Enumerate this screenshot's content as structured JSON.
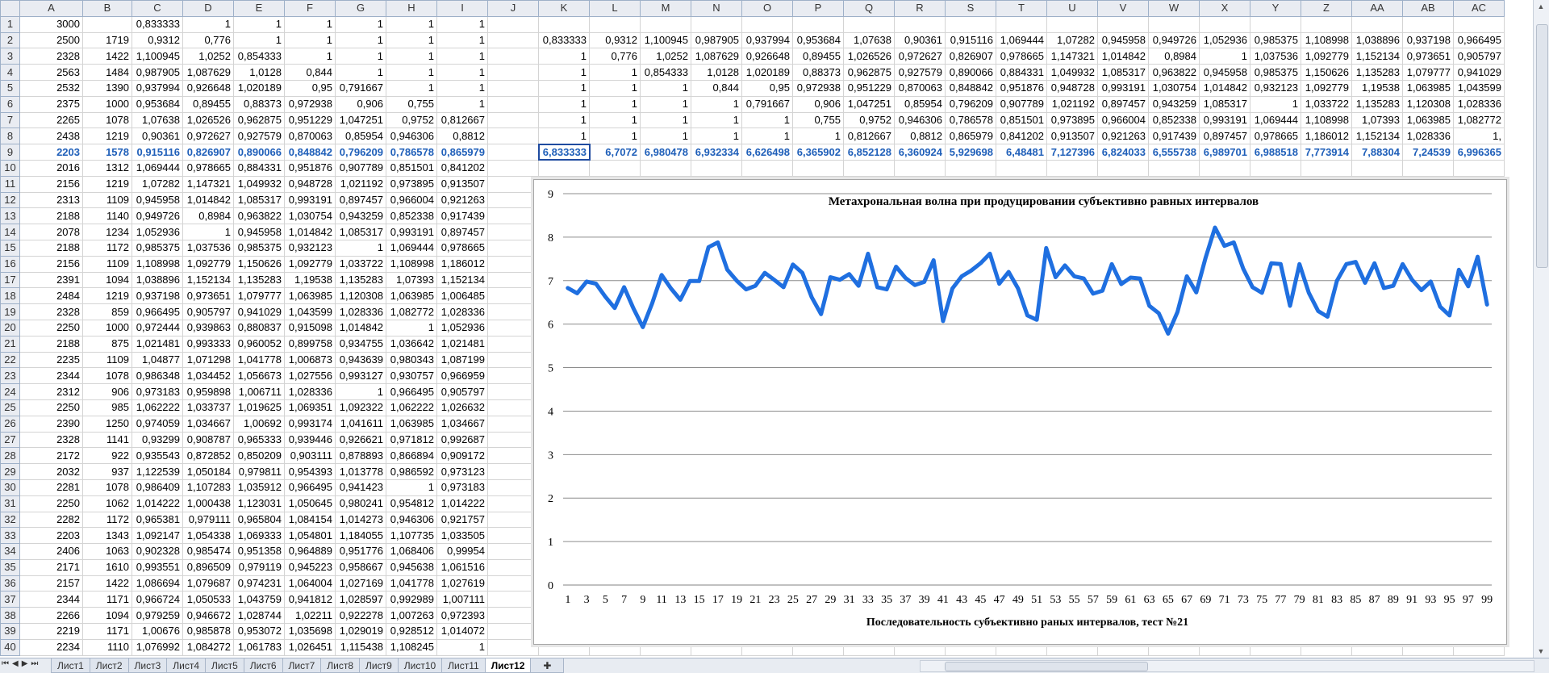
{
  "columns": [
    "A",
    "B",
    "C",
    "D",
    "E",
    "F",
    "G",
    "H",
    "I",
    "J",
    "K",
    "L",
    "M",
    "N",
    "O",
    "P",
    "Q",
    "R",
    "S",
    "T",
    "U",
    "V",
    "W",
    "X",
    "Y",
    "Z",
    "AA",
    "AB",
    "AC"
  ],
  "rows": [
    [
      "3000",
      "",
      "0,833333",
      "1",
      "1",
      "1",
      "1",
      "1",
      "1",
      "",
      "",
      "",
      "",
      "",
      "",
      "",
      "",
      "",
      "",
      "",
      "",
      "",
      "",
      "",
      "",
      "",
      "",
      "",
      ""
    ],
    [
      "2500",
      "1719",
      "0,9312",
      "0,776",
      "1",
      "1",
      "1",
      "1",
      "1",
      "",
      "0,833333",
      "0,9312",
      "1,100945",
      "0,987905",
      "0,937994",
      "0,953684",
      "1,07638",
      "0,90361",
      "0,915116",
      "1,069444",
      "1,07282",
      "0,945958",
      "0,949726",
      "1,052936",
      "0,985375",
      "1,108998",
      "1,038896",
      "0,937198",
      "0,966495"
    ],
    [
      "2328",
      "1422",
      "1,100945",
      "1,0252",
      "0,854333",
      "1",
      "1",
      "1",
      "1",
      "",
      "1",
      "0,776",
      "1,0252",
      "1,087629",
      "0,926648",
      "0,89455",
      "1,026526",
      "0,972627",
      "0,826907",
      "0,978665",
      "1,147321",
      "1,014842",
      "0,8984",
      "1",
      "1,037536",
      "1,092779",
      "1,152134",
      "0,973651",
      "0,905797"
    ],
    [
      "2563",
      "1484",
      "0,987905",
      "1,087629",
      "1,0128",
      "0,844",
      "1",
      "1",
      "1",
      "",
      "1",
      "1",
      "0,854333",
      "1,0128",
      "1,020189",
      "0,88373",
      "0,962875",
      "0,927579",
      "0,890066",
      "0,884331",
      "1,049932",
      "1,085317",
      "0,963822",
      "0,945958",
      "0,985375",
      "1,150626",
      "1,135283",
      "1,079777",
      "0,941029"
    ],
    [
      "2532",
      "1390",
      "0,937994",
      "0,926648",
      "1,020189",
      "0,95",
      "0,791667",
      "1",
      "1",
      "",
      "1",
      "1",
      "1",
      "0,844",
      "0,95",
      "0,972938",
      "0,951229",
      "0,870063",
      "0,848842",
      "0,951876",
      "0,948728",
      "0,993191",
      "1,030754",
      "1,014842",
      "0,932123",
      "1,092779",
      "1,19538",
      "1,063985",
      "1,043599"
    ],
    [
      "2375",
      "1000",
      "0,953684",
      "0,89455",
      "0,88373",
      "0,972938",
      "0,906",
      "0,755",
      "1",
      "",
      "1",
      "1",
      "1",
      "1",
      "0,791667",
      "0,906",
      "1,047251",
      "0,85954",
      "0,796209",
      "0,907789",
      "1,021192",
      "0,897457",
      "0,943259",
      "1,085317",
      "1",
      "1,033722",
      "1,135283",
      "1,120308",
      "1,028336"
    ],
    [
      "2265",
      "1078",
      "1,07638",
      "1,026526",
      "0,962875",
      "0,951229",
      "1,047251",
      "0,9752",
      "0,812667",
      "",
      "1",
      "1",
      "1",
      "1",
      "1",
      "0,755",
      "0,9752",
      "0,946306",
      "0,786578",
      "0,851501",
      "0,973895",
      "0,966004",
      "0,852338",
      "0,993191",
      "1,069444",
      "1,108998",
      "1,07393",
      "1,063985",
      "1,082772"
    ],
    [
      "2438",
      "1219",
      "0,90361",
      "0,972627",
      "0,927579",
      "0,870063",
      "0,85954",
      "0,946306",
      "0,8812",
      "",
      "1",
      "1",
      "1",
      "1",
      "1",
      "1",
      "0,812667",
      "0,8812",
      "0,865979",
      "0,841202",
      "0,913507",
      "0,921263",
      "0,917439",
      "0,897457",
      "0,978665",
      "1,186012",
      "1,152134",
      "1,028336",
      "1,"
    ],
    [
      "2203",
      "1578",
      "0,915116",
      "0,826907",
      "0,890066",
      "0,848842",
      "0,796209",
      "0,786578",
      "0,865979",
      "",
      "6,833333",
      "6,7072",
      "6,980478",
      "6,932334",
      "6,626498",
      "6,365902",
      "6,852128",
      "6,360924",
      "5,929698",
      "6,48481",
      "7,127396",
      "6,824033",
      "6,555738",
      "6,989701",
      "6,988518",
      "7,773914",
      "7,88304",
      "7,24539",
      "6,996365"
    ],
    [
      "2016",
      "1312",
      "1,069444",
      "0,978665",
      "0,884331",
      "0,951876",
      "0,907789",
      "0,851501",
      "0,841202",
      "",
      "",
      "",
      "",
      "",
      "",
      "",
      "",
      "",
      "",
      "",
      "",
      "",
      "",
      "",
      "",
      "",
      "",
      "",
      ""
    ],
    [
      "2156",
      "1219",
      "1,07282",
      "1,147321",
      "1,049932",
      "0,948728",
      "1,021192",
      "0,973895",
      "0,913507",
      "",
      "",
      "",
      "",
      "",
      "",
      "",
      "",
      "",
      "",
      "",
      "",
      "",
      "",
      "",
      "",
      "",
      "",
      "",
      ""
    ],
    [
      "2313",
      "1109",
      "0,945958",
      "1,014842",
      "1,085317",
      "0,993191",
      "0,897457",
      "0,966004",
      "0,921263",
      "",
      "",
      "",
      "",
      "",
      "",
      "",
      "",
      "",
      "",
      "",
      "",
      "",
      "",
      "",
      "",
      "",
      "",
      "",
      ""
    ],
    [
      "2188",
      "1140",
      "0,949726",
      "0,8984",
      "0,963822",
      "1,030754",
      "0,943259",
      "0,852338",
      "0,917439",
      "",
      "",
      "",
      "",
      "",
      "",
      "",
      "",
      "",
      "",
      "",
      "",
      "",
      "",
      "",
      "",
      "",
      "",
      "",
      ""
    ],
    [
      "2078",
      "1234",
      "1,052936",
      "1",
      "0,945958",
      "1,014842",
      "1,085317",
      "0,993191",
      "0,897457",
      "",
      "",
      "",
      "",
      "",
      "",
      "",
      "",
      "",
      "",
      "",
      "",
      "",
      "",
      "",
      "",
      "",
      "",
      "",
      ""
    ],
    [
      "2188",
      "1172",
      "0,985375",
      "1,037536",
      "0,985375",
      "0,932123",
      "1",
      "1,069444",
      "0,978665",
      "",
      "",
      "",
      "",
      "",
      "",
      "",
      "",
      "",
      "",
      "",
      "",
      "",
      "",
      "",
      "",
      "",
      "",
      "",
      ""
    ],
    [
      "2156",
      "1109",
      "1,108998",
      "1,092779",
      "1,150626",
      "1,092779",
      "1,033722",
      "1,108998",
      "1,186012",
      "",
      "",
      "",
      "",
      "",
      "",
      "",
      "",
      "",
      "",
      "",
      "",
      "",
      "",
      "",
      "",
      "",
      "",
      "",
      ""
    ],
    [
      "2391",
      "1094",
      "1,038896",
      "1,152134",
      "1,135283",
      "1,19538",
      "1,135283",
      "1,07393",
      "1,152134",
      "",
      "",
      "",
      "",
      "",
      "",
      "",
      "",
      "",
      "",
      "",
      "",
      "",
      "",
      "",
      "",
      "",
      "",
      "",
      ""
    ],
    [
      "2484",
      "1219",
      "0,937198",
      "0,973651",
      "1,079777",
      "1,063985",
      "1,120308",
      "1,063985",
      "1,006485",
      "",
      "",
      "",
      "",
      "",
      "",
      "",
      "",
      "",
      "",
      "",
      "",
      "",
      "",
      "",
      "",
      "",
      "",
      "",
      ""
    ],
    [
      "2328",
      "859",
      "0,966495",
      "0,905797",
      "0,941029",
      "1,043599",
      "1,028336",
      "1,082772",
      "1,028336",
      "",
      "",
      "",
      "",
      "",
      "",
      "",
      "",
      "",
      "",
      "",
      "",
      "",
      "",
      "",
      "",
      "",
      "",
      "",
      ""
    ],
    [
      "2250",
      "1000",
      "0,972444",
      "0,939863",
      "0,880837",
      "0,915098",
      "1,014842",
      "1",
      "1,052936",
      "",
      "",
      "",
      "",
      "",
      "",
      "",
      "",
      "",
      "",
      "",
      "",
      "",
      "",
      "",
      "",
      "",
      "",
      "",
      ""
    ],
    [
      "2188",
      "875",
      "1,021481",
      "0,993333",
      "0,960052",
      "0,899758",
      "0,934755",
      "1,036642",
      "1,021481",
      "",
      "",
      "",
      "",
      "",
      "",
      "",
      "",
      "",
      "",
      "",
      "",
      "",
      "",
      "",
      "",
      "",
      "",
      "",
      ""
    ],
    [
      "2235",
      "1109",
      "1,04877",
      "1,071298",
      "1,041778",
      "1,006873",
      "0,943639",
      "0,980343",
      "1,087199",
      "",
      "",
      "",
      "",
      "",
      "",
      "",
      "",
      "",
      "",
      "",
      "",
      "",
      "",
      "",
      "",
      "",
      "",
      "",
      ""
    ],
    [
      "2344",
      "1078",
      "0,986348",
      "1,034452",
      "1,056673",
      "1,027556",
      "0,993127",
      "0,930757",
      "0,966959",
      "",
      "",
      "",
      "",
      "",
      "",
      "",
      "",
      "",
      "",
      "",
      "",
      "",
      "",
      "",
      "",
      "",
      "",
      "",
      ""
    ],
    [
      "2312",
      "906",
      "0,973183",
      "0,959898",
      "1,006711",
      "1,028336",
      "1",
      "0,966495",
      "0,905797",
      "",
      "",
      "",
      "",
      "",
      "",
      "",
      "",
      "",
      "",
      "",
      "",
      "",
      "",
      "",
      "",
      "",
      "",
      "",
      ""
    ],
    [
      "2250",
      "985",
      "1,062222",
      "1,033737",
      "1,019625",
      "1,069351",
      "1,092322",
      "1,062222",
      "1,026632",
      "",
      "",
      "",
      "",
      "",
      "",
      "",
      "",
      "",
      "",
      "",
      "",
      "",
      "",
      "",
      "",
      "",
      "",
      "",
      ""
    ],
    [
      "2390",
      "1250",
      "0,974059",
      "1,034667",
      "1,00692",
      "0,993174",
      "1,041611",
      "1,063985",
      "1,034667",
      "",
      "",
      "",
      "",
      "",
      "",
      "",
      "",
      "",
      "",
      "",
      "",
      "",
      "",
      "",
      "",
      "",
      "",
      "",
      ""
    ],
    [
      "2328",
      "1141",
      "0,93299",
      "0,908787",
      "0,965333",
      "0,939446",
      "0,926621",
      "0,971812",
      "0,992687",
      "",
      "",
      "",
      "",
      "",
      "",
      "",
      "",
      "",
      "",
      "",
      "",
      "",
      "",
      "",
      "",
      "",
      "",
      "",
      ""
    ],
    [
      "2172",
      "922",
      "0,935543",
      "0,872852",
      "0,850209",
      "0,903111",
      "0,878893",
      "0,866894",
      "0,909172",
      "",
      "",
      "",
      "",
      "",
      "",
      "",
      "",
      "",
      "",
      "",
      "",
      "",
      "",
      "",
      "",
      "",
      "",
      "",
      ""
    ],
    [
      "2032",
      "937",
      "1,122539",
      "1,050184",
      "0,979811",
      "0,954393",
      "1,013778",
      "0,986592",
      "0,973123",
      "",
      "",
      "",
      "",
      "",
      "",
      "",
      "",
      "",
      "",
      "",
      "",
      "",
      "",
      "",
      "",
      "",
      "",
      "",
      ""
    ],
    [
      "2281",
      "1078",
      "0,986409",
      "1,107283",
      "1,035912",
      "0,966495",
      "0,941423",
      "1",
      "0,973183",
      "",
      "",
      "",
      "",
      "",
      "",
      "",
      "",
      "",
      "",
      "",
      "",
      "",
      "",
      "",
      "",
      "",
      "",
      "",
      ""
    ],
    [
      "2250",
      "1062",
      "1,014222",
      "1,000438",
      "1,123031",
      "1,050645",
      "0,980241",
      "0,954812",
      "1,014222",
      "",
      "",
      "",
      "",
      "",
      "",
      "",
      "",
      "",
      "",
      "",
      "",
      "",
      "",
      "",
      "",
      "",
      "",
      "",
      ""
    ],
    [
      "2282",
      "1172",
      "0,965381",
      "0,979111",
      "0,965804",
      "1,084154",
      "1,014273",
      "0,946306",
      "0,921757",
      "",
      "",
      "",
      "",
      "",
      "",
      "",
      "",
      "",
      "",
      "",
      "",
      "",
      "",
      "",
      "",
      "",
      "",
      "",
      ""
    ],
    [
      "2203",
      "1343",
      "1,092147",
      "1,054338",
      "1,069333",
      "1,054801",
      "1,184055",
      "1,107735",
      "1,033505",
      "",
      "",
      "",
      "",
      "",
      "",
      "",
      "",
      "",
      "",
      "",
      "",
      "",
      "",
      "",
      "",
      "",
      "",
      "",
      ""
    ],
    [
      "2406",
      "1063",
      "0,902328",
      "0,985474",
      "0,951358",
      "0,964889",
      "0,951776",
      "1,068406",
      "0,99954",
      "",
      "",
      "",
      "",
      "",
      "",
      "",
      "",
      "",
      "",
      "",
      "",
      "",
      "",
      "",
      "",
      "",
      "",
      "",
      ""
    ],
    [
      "2171",
      "1610",
      "0,993551",
      "0,896509",
      "0,979119",
      "0,945223",
      "0,958667",
      "0,945638",
      "1,061516",
      "",
      "",
      "",
      "",
      "",
      "",
      "",
      "",
      "",
      "",
      "",
      "",
      "",
      "",
      "",
      "",
      "",
      "",
      "",
      ""
    ],
    [
      "2157",
      "1422",
      "1,086694",
      "1,079687",
      "0,974231",
      "1,064004",
      "1,027169",
      "1,041778",
      "1,027619",
      "",
      "",
      "",
      "",
      "",
      "",
      "",
      "",
      "",
      "",
      "",
      "",
      "",
      "",
      "",
      "",
      "",
      "",
      "",
      ""
    ],
    [
      "2344",
      "1171",
      "0,966724",
      "1,050533",
      "1,043759",
      "0,941812",
      "1,028597",
      "0,992989",
      "1,007111",
      "",
      "",
      "",
      "",
      "",
      "",
      "",
      "",
      "",
      "",
      "",
      "",
      "",
      "",
      "",
      "",
      "",
      "",
      "",
      ""
    ],
    [
      "2266",
      "1094",
      "0,979259",
      "0,946672",
      "1,028744",
      "1,02211",
      "0,922278",
      "1,007263",
      "0,972393",
      "",
      "",
      "",
      "",
      "",
      "",
      "",
      "",
      "",
      "",
      "",
      "",
      "",
      "",
      "",
      "",
      "",
      "",
      "",
      ""
    ],
    [
      "2219",
      "1171",
      "1,00676",
      "0,985878",
      "0,953072",
      "1,035698",
      "1,029019",
      "0,928512",
      "1,014072",
      "",
      "",
      "",
      "",
      "",
      "",
      "",
      "",
      "",
      "",
      "",
      "",
      "",
      "",
      "",
      "",
      "",
      "",
      "",
      ""
    ],
    [
      "2234",
      "1110",
      "1,076992",
      "1,084272",
      "1,061783",
      "1,026451",
      "1,115438",
      "1,108245",
      "1",
      "",
      "",
      "",
      "",
      "",
      "",
      "",
      "",
      "",
      "",
      "",
      "",
      "",
      "",
      "",
      "",
      "",
      "",
      "",
      ""
    ]
  ],
  "tabs": [
    "Лист1",
    "Лист2",
    "Лист3",
    "Лист4",
    "Лист5",
    "Лист6",
    "Лист7",
    "Лист8",
    "Лист9",
    "Лист10",
    "Лист11",
    "Лист12"
  ],
  "active_tab": "Лист12",
  "chart_data": {
    "type": "line",
    "title": "Метахрональная волна при продуцировании субъективно равных интервалов",
    "xlabel": "Последовательность субъективно раных интервалов, тест №21",
    "ylabel": "",
    "ylim": [
      0,
      9
    ],
    "yticks": [
      0,
      1,
      2,
      3,
      4,
      5,
      6,
      7,
      8,
      9
    ],
    "x": [
      1,
      2,
      3,
      4,
      5,
      6,
      7,
      8,
      9,
      10,
      11,
      12,
      13,
      14,
      15,
      16,
      17,
      18,
      19,
      20,
      21,
      22,
      23,
      24,
      25,
      26,
      27,
      28,
      29,
      30,
      31,
      32,
      33,
      34,
      35,
      36,
      37,
      38,
      39,
      40,
      41,
      42,
      43,
      44,
      45,
      46,
      47,
      48,
      49,
      50,
      51,
      52,
      53,
      54,
      55,
      56,
      57,
      58,
      59,
      60,
      61,
      62,
      63,
      64,
      65,
      66,
      67,
      68,
      69,
      70,
      71,
      72,
      73,
      74,
      75,
      76,
      77,
      78,
      79,
      80,
      81,
      82,
      83,
      84,
      85,
      86,
      87,
      88,
      89,
      90,
      91,
      92,
      93,
      94,
      95,
      96,
      97,
      98,
      99
    ],
    "xticks": [
      1,
      3,
      5,
      7,
      9,
      11,
      13,
      15,
      17,
      19,
      21,
      23,
      25,
      27,
      29,
      31,
      33,
      35,
      37,
      39,
      41,
      43,
      45,
      47,
      49,
      51,
      53,
      55,
      57,
      59,
      61,
      63,
      65,
      67,
      69,
      71,
      73,
      75,
      77,
      79,
      81,
      83,
      85,
      87,
      89,
      91,
      93,
      95,
      97,
      99
    ],
    "series": [
      {
        "name": "",
        "color": "#1f6fe0",
        "values": [
          6.83,
          6.71,
          6.98,
          6.93,
          6.63,
          6.37,
          6.85,
          6.36,
          5.93,
          6.48,
          7.13,
          6.82,
          6.56,
          6.99,
          6.99,
          7.77,
          7.88,
          7.25,
          7.0,
          6.8,
          6.88,
          7.18,
          7.02,
          6.85,
          7.37,
          7.18,
          6.62,
          6.23,
          7.08,
          7.02,
          7.15,
          6.88,
          7.62,
          6.85,
          6.8,
          7.32,
          7.06,
          6.9,
          6.97,
          7.47,
          6.07,
          6.82,
          7.1,
          7.23,
          7.4,
          7.62,
          6.93,
          7.2,
          6.82,
          6.2,
          6.1,
          7.75,
          7.08,
          7.35,
          7.1,
          7.05,
          6.7,
          6.77,
          7.38,
          6.92,
          7.07,
          7.05,
          6.42,
          6.25,
          5.78,
          6.28,
          7.1,
          6.73,
          7.53,
          8.22,
          7.8,
          7.88,
          7.28,
          6.85,
          6.72,
          7.4,
          7.38,
          6.42,
          7.38,
          6.72,
          6.3,
          6.17,
          7.0,
          7.38,
          7.43,
          6.95,
          7.4,
          6.83,
          6.88,
          7.38,
          7.02,
          6.78,
          6.98,
          6.4,
          6.2,
          7.25,
          6.87,
          7.55,
          6.45
        ]
      }
    ]
  }
}
